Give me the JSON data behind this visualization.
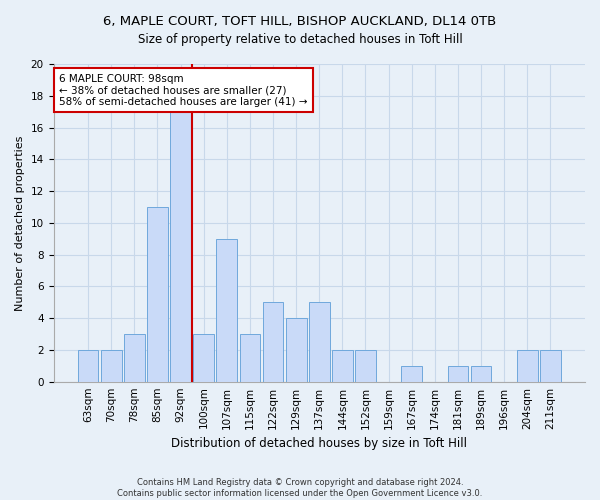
{
  "title1": "6, MAPLE COURT, TOFT HILL, BISHOP AUCKLAND, DL14 0TB",
  "title2": "Size of property relative to detached houses in Toft Hill",
  "xlabel": "Distribution of detached houses by size in Toft Hill",
  "ylabel": "Number of detached properties",
  "footnote": "Contains HM Land Registry data © Crown copyright and database right 2024.\nContains public sector information licensed under the Open Government Licence v3.0.",
  "bin_labels": [
    "63sqm",
    "70sqm",
    "78sqm",
    "85sqm",
    "92sqm",
    "100sqm",
    "107sqm",
    "115sqm",
    "122sqm",
    "129sqm",
    "137sqm",
    "144sqm",
    "152sqm",
    "159sqm",
    "167sqm",
    "174sqm",
    "181sqm",
    "189sqm",
    "196sqm",
    "204sqm",
    "211sqm"
  ],
  "bar_values": [
    2,
    2,
    3,
    11,
    17,
    3,
    9,
    3,
    5,
    4,
    5,
    2,
    2,
    0,
    1,
    0,
    1,
    1,
    0,
    2,
    2
  ],
  "bar_color": "#c9daf8",
  "bar_edge_color": "#6fa8dc",
  "vline_color": "#cc0000",
  "vline_x": 4.5,
  "annotation_text": "6 MAPLE COURT: 98sqm\n← 38% of detached houses are smaller (27)\n58% of semi-detached houses are larger (41) →",
  "annotation_box_facecolor": "#ffffff",
  "annotation_box_edgecolor": "#cc0000",
  "ylim": [
    0,
    20
  ],
  "yticks": [
    0,
    2,
    4,
    6,
    8,
    10,
    12,
    14,
    16,
    18,
    20
  ],
  "grid_color": "#c8d8ea",
  "background_color": "#e8f0f8",
  "title1_fontsize": 9.5,
  "title2_fontsize": 8.5,
  "xlabel_fontsize": 8.5,
  "ylabel_fontsize": 8,
  "tick_fontsize": 7.5,
  "annot_fontsize": 7.5,
  "footnote_fontsize": 6
}
